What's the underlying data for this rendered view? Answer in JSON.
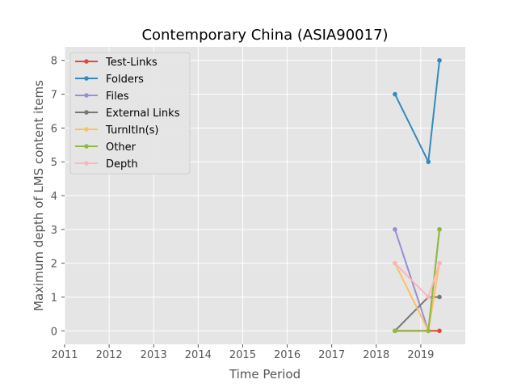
{
  "chart_data": {
    "type": "line",
    "title": "Contemporary China (ASIA90017)",
    "xlabel": "Time Period",
    "ylabel": "Maximum depth of LMS content items",
    "xlim": [
      2011,
      2020
    ],
    "ylim": [
      -0.4,
      8.4
    ],
    "xticks": [
      "2011",
      "2012",
      "2013",
      "2014",
      "2015",
      "2016",
      "2017",
      "2018",
      "2019"
    ],
    "yticks": [
      "0",
      "1",
      "2",
      "3",
      "4",
      "5",
      "6",
      "7",
      "8"
    ],
    "grid": true,
    "legend_position": "top-left",
    "x": [
      2018.42,
      2019.17,
      2019.42
    ],
    "series": [
      {
        "name": "Test-Links",
        "color": "#E24A33",
        "values": [
          0,
          0,
          0
        ]
      },
      {
        "name": "Folders",
        "color": "#348ABD",
        "values": [
          7,
          5,
          8
        ]
      },
      {
        "name": "Files",
        "color": "#988ED5",
        "values": [
          3,
          0,
          3
        ]
      },
      {
        "name": "External Links",
        "color": "#777777",
        "values": [
          0,
          1,
          1
        ]
      },
      {
        "name": "TurnItIn(s)",
        "color": "#FBC15E",
        "values": [
          2,
          0,
          2
        ]
      },
      {
        "name": "Other",
        "color": "#8EBA42",
        "values": [
          0,
          0,
          3
        ]
      },
      {
        "name": "Depth",
        "color": "#FFB5B8",
        "values": [
          2,
          1,
          2
        ]
      }
    ]
  }
}
